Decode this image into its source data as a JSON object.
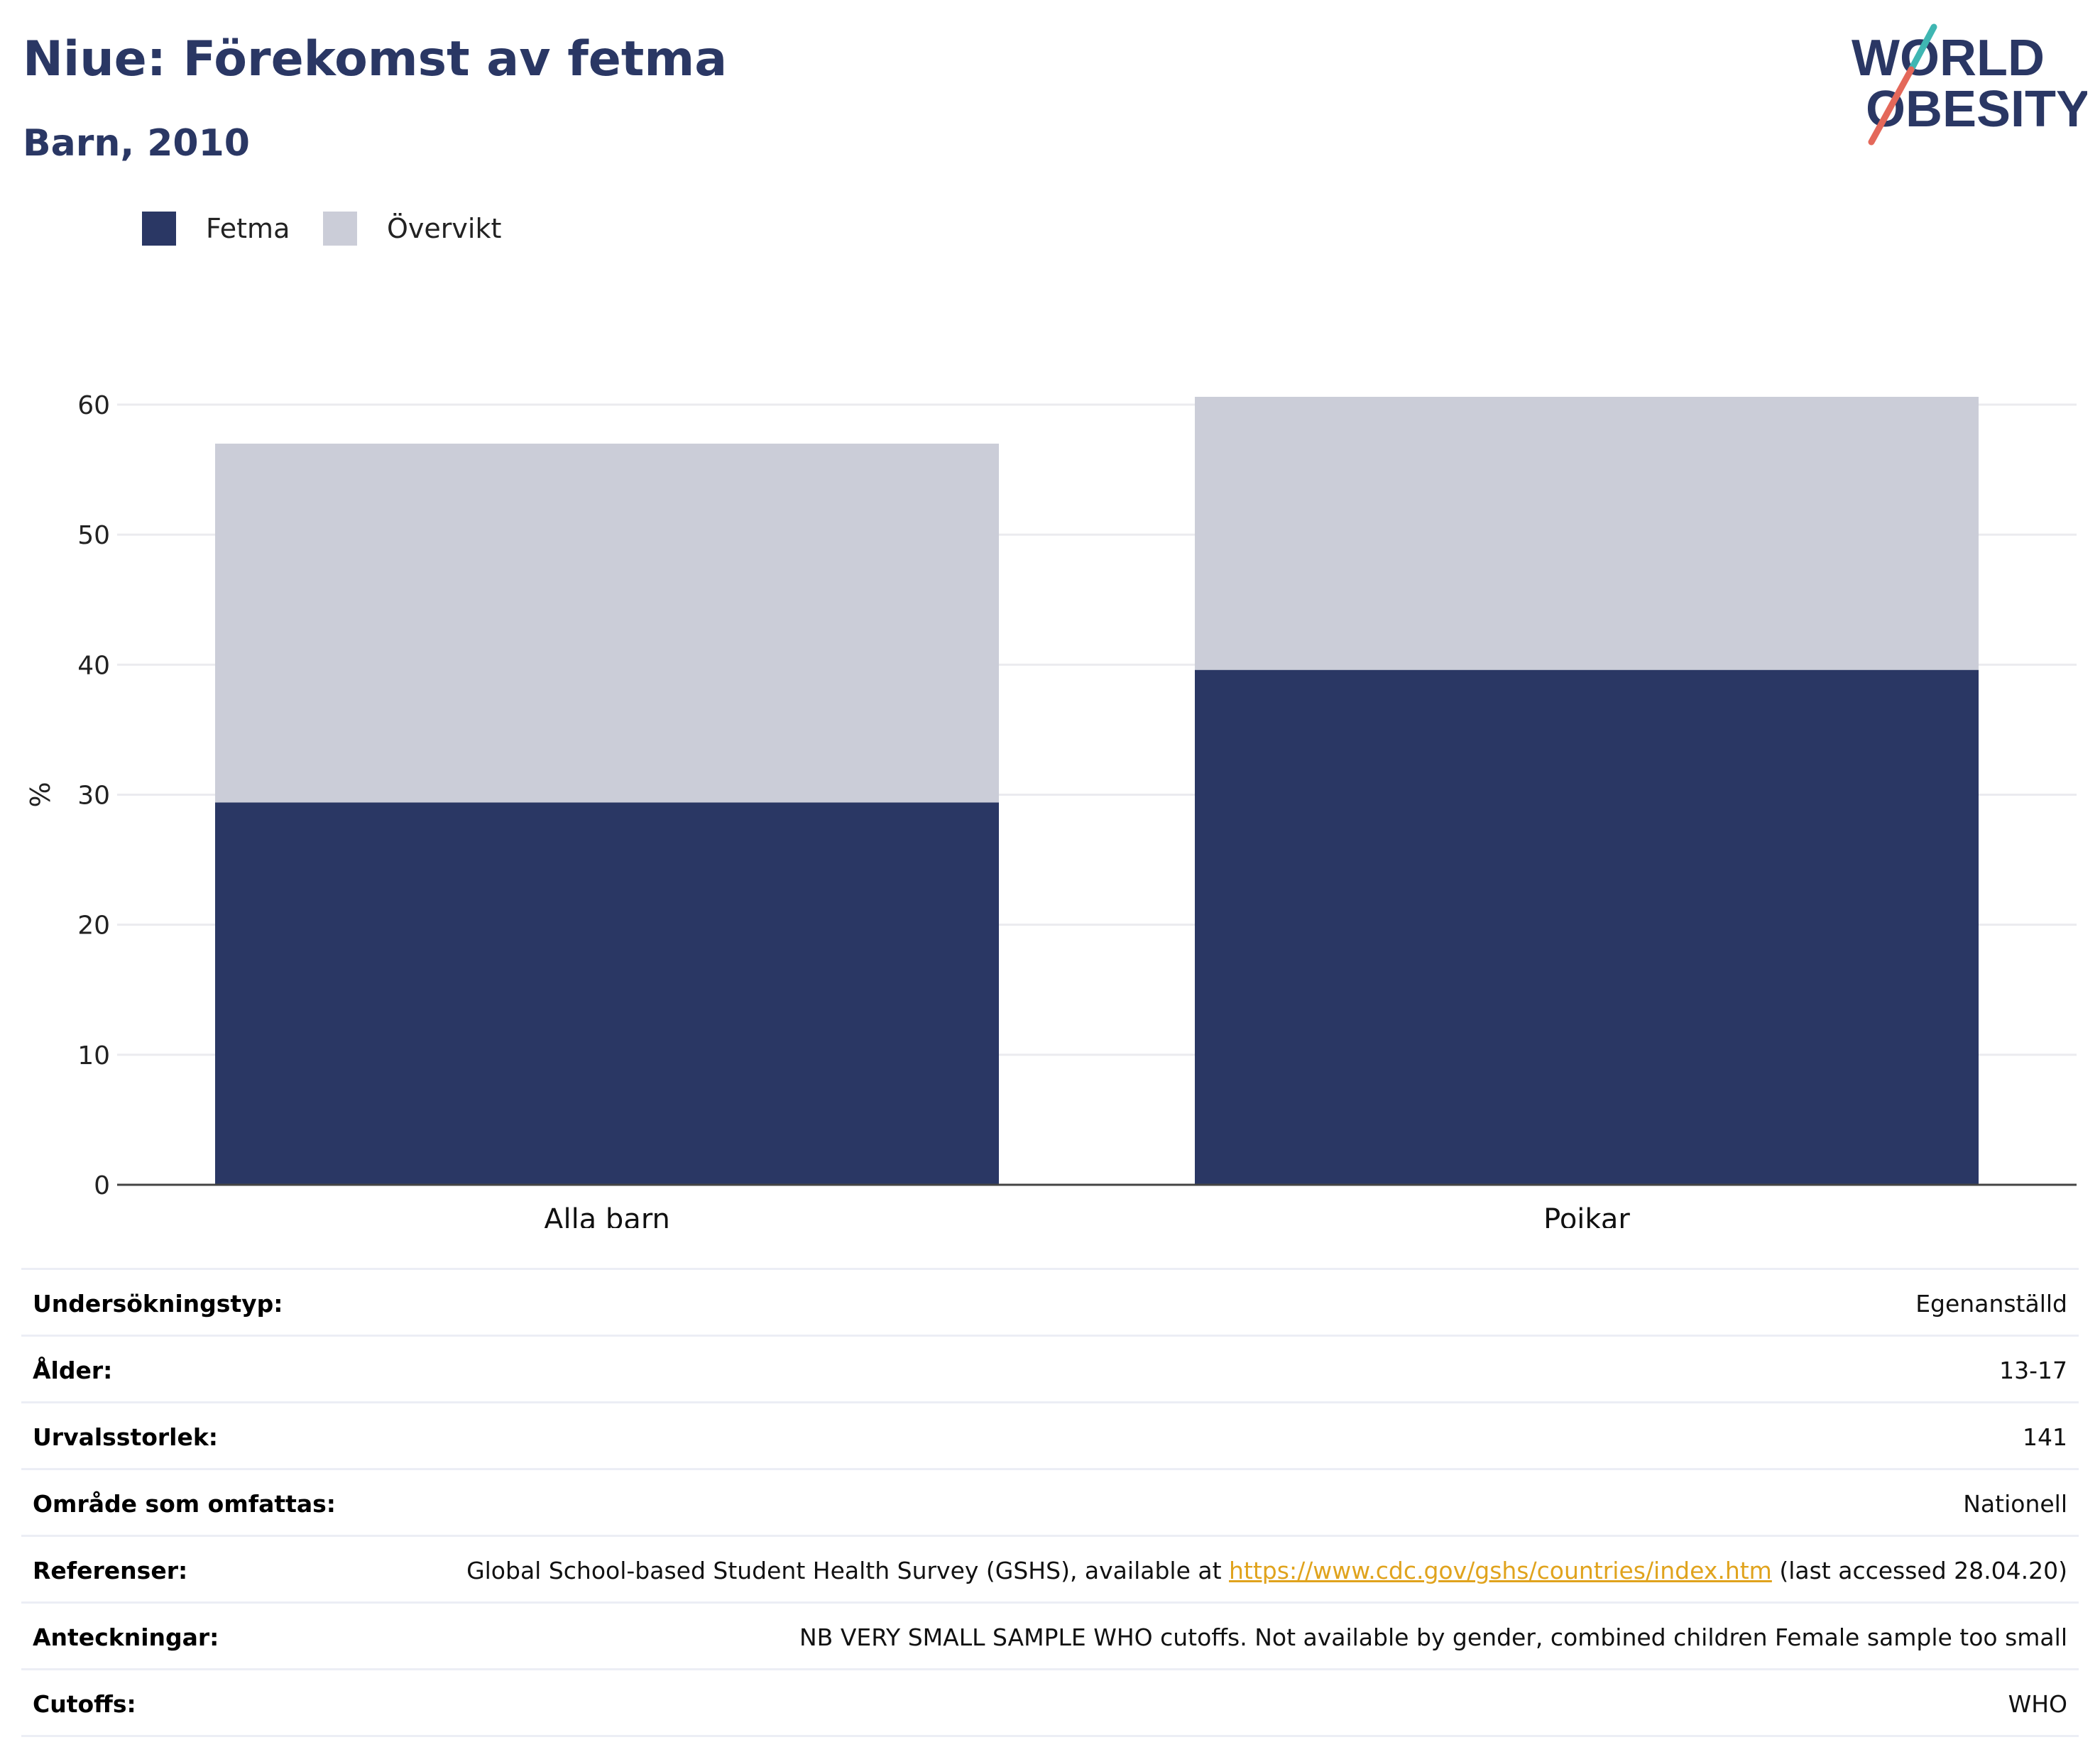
{
  "header": {
    "title": "Niue: Förekomst av fetma",
    "subtitle": "Barn, 2010",
    "logo_line1": "WORLD",
    "logo_line2": "OBESITY"
  },
  "legend": [
    {
      "label": "Fetma",
      "color": "#2a3764"
    },
    {
      "label": "Övervikt",
      "color": "#cbcdd8"
    }
  ],
  "chart_data": {
    "type": "bar",
    "stacked": true,
    "categories": [
      "Alla barn",
      "Pojkar"
    ],
    "series": [
      {
        "name": "Fetma",
        "values": [
          29.4,
          39.6
        ],
        "color": "#2a3764"
      },
      {
        "name": "Övervikt",
        "values": [
          27.6,
          21.0
        ],
        "color": "#cbcdd8"
      }
    ],
    "title": "Niue: Förekomst av fetma",
    "subtitle": "Barn, 2010",
    "ylabel": "%",
    "xlabel": "",
    "ylim": [
      0,
      60
    ],
    "yticks": [
      0,
      10,
      20,
      30,
      40,
      50,
      60
    ],
    "grid": true,
    "legend_position": "top-left"
  },
  "info": {
    "survey_type": {
      "label": "Undersökningstyp:",
      "value": "Egenanställd"
    },
    "age": {
      "label": "Ålder:",
      "value": "13-17"
    },
    "sample_size": {
      "label": "Urvalsstorlek:",
      "value": "141"
    },
    "area": {
      "label": "Område som omfattas:",
      "value": "Nationell"
    },
    "references": {
      "label": "Referenser:",
      "text_before": "Global School-based Student Health Survey (GSHS), available at ",
      "link": "https://www.cdc.gov/gshs/countries/index.htm",
      "text_after": " (last accessed 28.04.20)"
    },
    "notes": {
      "label": "Anteckningar:",
      "value": "NB VERY SMALL SAMPLE WHO cutoffs. Not available by gender, combined children Female sample too small"
    },
    "cutoffs": {
      "label": "Cutoffs:",
      "value": "WHO"
    }
  }
}
